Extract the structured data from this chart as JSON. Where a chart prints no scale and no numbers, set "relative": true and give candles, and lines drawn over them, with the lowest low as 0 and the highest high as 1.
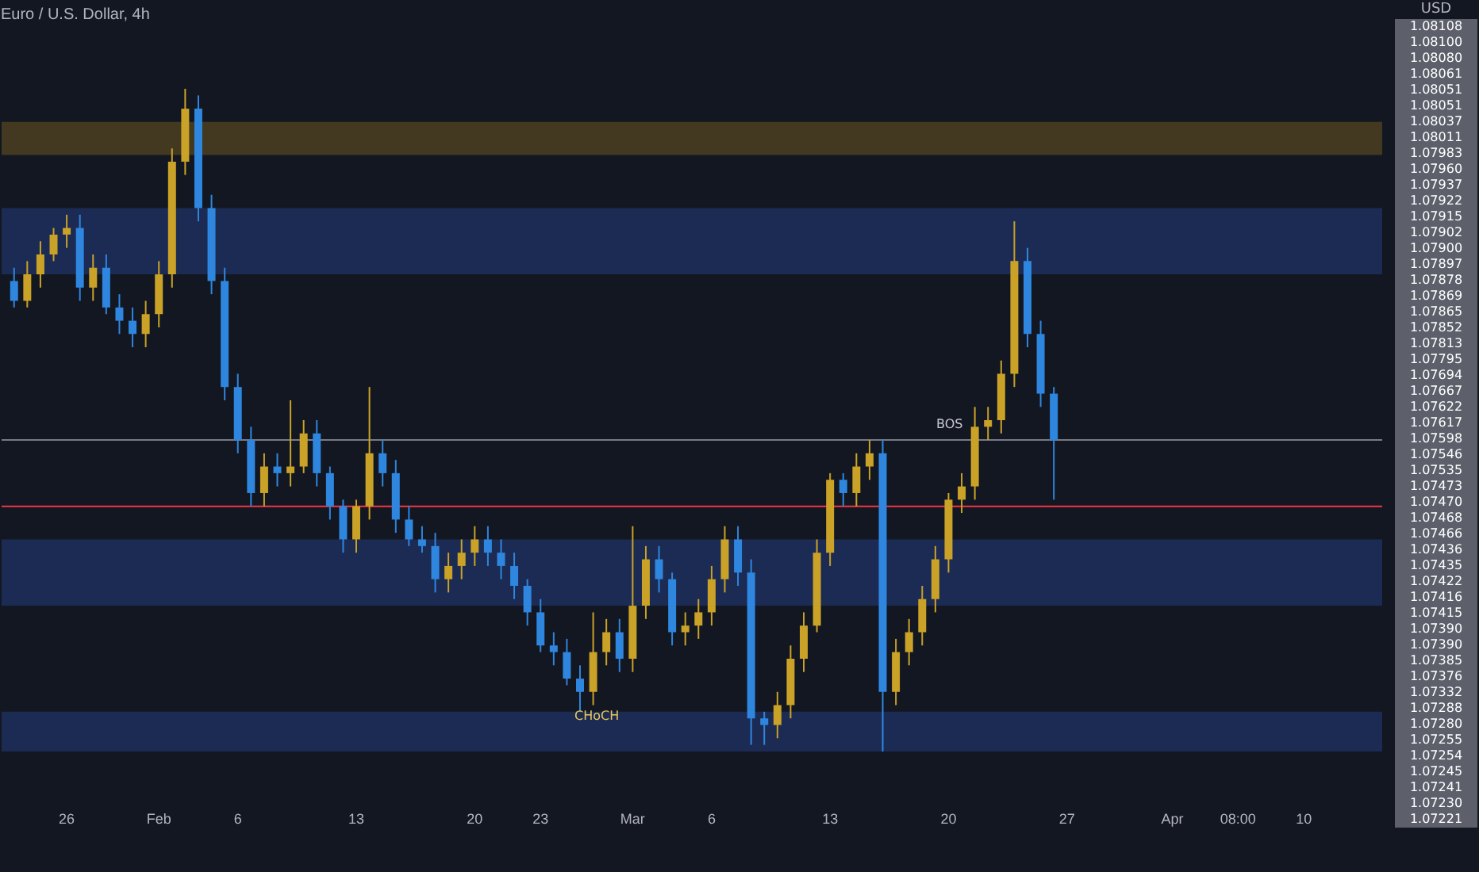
{
  "chart_data": {
    "type": "candlestick",
    "title": "Euro / U.S. Dollar, 4h",
    "relative": true,
    "categories": [
      null,
      null,
      null,
      null,
      "26",
      null,
      null,
      null,
      null,
      null,
      null,
      "Feb",
      null,
      null,
      null,
      null,
      null,
      "6",
      null,
      null,
      null,
      null,
      null,
      null,
      null,
      null,
      "13",
      null,
      null,
      null,
      null,
      null,
      null,
      null,
      null,
      "20",
      null,
      null,
      null,
      null,
      "23",
      null,
      null,
      null,
      null,
      null,
      null,
      "Mar",
      null,
      null,
      null,
      null,
      null,
      "6",
      null,
      null,
      null,
      null,
      null,
      null,
      null,
      null,
      "13",
      null,
      null,
      null,
      null,
      null,
      null,
      null,
      null,
      "20",
      null,
      null,
      null,
      null,
      null,
      null,
      null,
      null,
      "27",
      null,
      null,
      null,
      null,
      null,
      null,
      null,
      "Apr",
      null,
      null,
      null,
      null,
      "08:00",
      null,
      null,
      null,
      null,
      "10",
      null,
      null,
      null,
      null,
      null
    ],
    "ohlc": [
      [
        0.71,
        0.73,
        0.67,
        0.68
      ],
      [
        0.68,
        0.74,
        0.67,
        0.72
      ],
      [
        0.72,
        0.77,
        0.7,
        0.75
      ],
      [
        0.75,
        0.79,
        0.74,
        0.78
      ],
      [
        0.78,
        0.81,
        0.76,
        0.79
      ],
      [
        0.79,
        0.81,
        0.68,
        0.7
      ],
      [
        0.7,
        0.75,
        0.68,
        0.73
      ],
      [
        0.73,
        0.75,
        0.66,
        0.67
      ],
      [
        0.67,
        0.69,
        0.63,
        0.65
      ],
      [
        0.65,
        0.67,
        0.61,
        0.63
      ],
      [
        0.63,
        0.68,
        0.61,
        0.66
      ],
      [
        0.66,
        0.74,
        0.64,
        0.72
      ],
      [
        0.72,
        0.91,
        0.7,
        0.89
      ],
      [
        0.89,
        1,
        0.87,
        0.97
      ],
      [
        0.97,
        0.99,
        0.8,
        0.82
      ],
      [
        0.82,
        0.84,
        0.69,
        0.71
      ],
      [
        0.71,
        0.73,
        0.53,
        0.55
      ],
      [
        0.55,
        0.57,
        0.45,
        0.47
      ],
      [
        0.47,
        0.49,
        0.37,
        0.39
      ],
      [
        0.39,
        0.45,
        0.37,
        0.43
      ],
      [
        0.43,
        0.45,
        0.4,
        0.42
      ],
      [
        0.42,
        0.53,
        0.4,
        0.43
      ],
      [
        0.43,
        0.5,
        0.42,
        0.48
      ],
      [
        0.48,
        0.5,
        0.4,
        0.42
      ],
      [
        0.42,
        0.43,
        0.35,
        0.37
      ],
      [
        0.37,
        0.38,
        0.3,
        0.32
      ],
      [
        0.32,
        0.38,
        0.3,
        0.37
      ],
      [
        0.37,
        0.55,
        0.35,
        0.45
      ],
      [
        0.45,
        0.47,
        0.4,
        0.42
      ],
      [
        0.42,
        0.44,
        0.33,
        0.35
      ],
      [
        0.35,
        0.37,
        0.31,
        0.32
      ],
      [
        0.32,
        0.34,
        0.3,
        0.31
      ],
      [
        0.31,
        0.33,
        0.24,
        0.26
      ],
      [
        0.26,
        0.3,
        0.24,
        0.28
      ],
      [
        0.28,
        0.32,
        0.26,
        0.3
      ],
      [
        0.3,
        0.34,
        0.28,
        0.32
      ],
      [
        0.32,
        0.34,
        0.28,
        0.3
      ],
      [
        0.3,
        0.32,
        0.26,
        0.28
      ],
      [
        0.28,
        0.3,
        0.23,
        0.25
      ],
      [
        0.25,
        0.26,
        0.19,
        0.21
      ],
      [
        0.21,
        0.23,
        0.15,
        0.16
      ],
      [
        0.16,
        0.18,
        0.13,
        0.15
      ],
      [
        0.15,
        0.17,
        0.1,
        0.11
      ],
      [
        0.11,
        0.13,
        0.06,
        0.09
      ],
      [
        0.09,
        0.21,
        0.07,
        0.15
      ],
      [
        0.15,
        0.2,
        0.13,
        0.18
      ],
      [
        0.18,
        0.2,
        0.12,
        0.14
      ],
      [
        0.14,
        0.34,
        0.12,
        0.22
      ],
      [
        0.22,
        0.31,
        0.2,
        0.29
      ],
      [
        0.29,
        0.31,
        0.24,
        0.26
      ],
      [
        0.26,
        0.27,
        0.16,
        0.18
      ],
      [
        0.18,
        0.21,
        0.16,
        0.19
      ],
      [
        0.19,
        0.23,
        0.17,
        0.21
      ],
      [
        0.21,
        0.28,
        0.19,
        0.26
      ],
      [
        0.26,
        0.34,
        0.24,
        0.32
      ],
      [
        0.32,
        0.34,
        0.25,
        0.27
      ],
      [
        0.27,
        0.29,
        0.01,
        0.05
      ],
      [
        0.05,
        0.06,
        0.01,
        0.04
      ],
      [
        0.04,
        0.09,
        0.02,
        0.07
      ],
      [
        0.07,
        0.16,
        0.05,
        0.14
      ],
      [
        0.14,
        0.21,
        0.12,
        0.19
      ],
      [
        0.19,
        0.32,
        0.18,
        0.3
      ],
      [
        0.3,
        0.42,
        0.28,
        0.41
      ],
      [
        0.41,
        0.42,
        0.37,
        0.39
      ],
      [
        0.39,
        0.45,
        0.37,
        0.43
      ],
      [
        0.43,
        0.47,
        0.41,
        0.45
      ],
      [
        0.45,
        0.47,
        0,
        0.09
      ],
      [
        0.09,
        0.17,
        0.07,
        0.15
      ],
      [
        0.15,
        0.2,
        0.13,
        0.18
      ],
      [
        0.18,
        0.25,
        0.16,
        0.23
      ],
      [
        0.23,
        0.31,
        0.21,
        0.29
      ],
      [
        0.29,
        0.39,
        0.27,
        0.38
      ],
      [
        0.38,
        0.42,
        0.36,
        0.4
      ],
      [
        0.4,
        0.52,
        0.38,
        0.49
      ],
      [
        0.49,
        0.52,
        0.47,
        0.5
      ],
      [
        0.5,
        0.59,
        0.48,
        0.57
      ],
      [
        0.57,
        0.8,
        0.55,
        0.74
      ],
      [
        0.74,
        0.76,
        0.61,
        0.63
      ],
      [
        0.63,
        0.65,
        0.52,
        0.54
      ],
      [
        0.54,
        0.55,
        0.38,
        0.47
      ],
      null,
      null,
      null,
      null,
      null,
      null,
      null,
      null,
      null,
      null,
      null,
      null,
      null,
      null,
      null,
      null,
      null,
      null,
      null,
      null,
      null,
      null,
      null,
      null
    ],
    "colors": [
      "#2e86de",
      "#c9a227",
      "#c9a227",
      "#c9a227",
      "#c9a227",
      "#2e86de",
      "#c9a227",
      "#2e86de",
      "#2e86de",
      "#2e86de",
      "#c9a227",
      "#c9a227",
      "#c9a227",
      "#c9a227",
      "#2e86de",
      "#2e86de",
      "#2e86de",
      "#2e86de",
      "#2e86de",
      "#c9a227",
      "#2e86de",
      "#c9a227",
      "#c9a227",
      "#2e86de",
      "#2e86de",
      "#2e86de",
      "#c9a227",
      "#c9a227",
      "#2e86de",
      "#2e86de",
      "#2e86de",
      "#2e86de",
      "#2e86de",
      "#c9a227",
      "#c9a227",
      "#c9a227",
      "#2e86de",
      "#2e86de",
      "#2e86de",
      "#2e86de",
      "#2e86de",
      "#2e86de",
      "#2e86de",
      "#2e86de",
      "#c9a227",
      "#c9a227",
      "#2e86de",
      "#c9a227",
      "#c9a227",
      "#2e86de",
      "#2e86de",
      "#c9a227",
      "#c9a227",
      "#c9a227",
      "#c9a227",
      "#2e86de",
      "#2e86de",
      "#2e86de",
      "#c9a227",
      "#c9a227",
      "#c9a227",
      "#c9a227",
      "#c9a227",
      "#2e86de",
      "#c9a227",
      "#c9a227",
      "#2e86de",
      "#c9a227",
      "#c9a227",
      "#c9a227",
      "#c9a227",
      "#c9a227",
      "#c9a227",
      "#c9a227",
      "#c9a227",
      "#c9a227",
      "#c9a227",
      "#2e86de",
      "#2e86de",
      "#2e86de",
      null,
      null,
      null,
      null,
      null,
      null,
      null,
      null,
      null,
      null,
      null,
      null,
      null,
      null,
      null,
      null,
      null,
      null,
      null,
      null,
      null,
      null,
      null,
      null
    ],
    "bands": [
      {
        "axis": "y",
        "from": 0.9,
        "to": 0.95,
        "color": "#8a6d1f"
      },
      {
        "axis": "y",
        "from": 0.72,
        "to": 0.82,
        "color": "#2a4a9f"
      },
      {
        "axis": "y",
        "from": 0.22,
        "to": 0.32,
        "color": "#2a4a9f"
      },
      {
        "axis": "y",
        "from": 0,
        "to": 0.06,
        "color": "#2a4a9f"
      }
    ],
    "ref_lines": [
      {
        "axis": "y",
        "value": 0.37,
        "color": "#f23645"
      },
      {
        "axis": "y",
        "value": 0.47,
        "color": "#787b86"
      }
    ],
    "annotations": [
      "BOS",
      "CHoCH",
      "USD",
      "1.08108",
      "1.08100",
      "1.08080",
      "1.08061",
      "1.08051",
      "1.08051",
      "1.08037",
      "1.08011",
      "1.07983",
      "1.07960",
      "1.07937",
      "1.07922",
      "1.07915",
      "1.07902",
      "1.07900",
      "1.07897",
      "1.07878",
      "1.07869",
      "1.07865",
      "1.07852",
      "1.07813",
      "1.07795",
      "1.07694",
      "1.07667",
      "1.07622",
      "1.07617",
      "1.07598",
      "1.07546",
      "1.07535",
      "1.07473",
      "1.07470",
      "1.07468",
      "1.07466",
      "1.07436",
      "1.07435",
      "1.07422",
      "1.07416",
      "1.07415",
      "1.07390",
      "1.07390",
      "1.07385",
      "1.07376",
      "1.07332",
      "1.07288",
      "1.07280",
      "1.07255",
      "1.07254",
      "1.07245",
      "1.07241",
      "1.07230",
      "1.07221"
    ]
  }
}
